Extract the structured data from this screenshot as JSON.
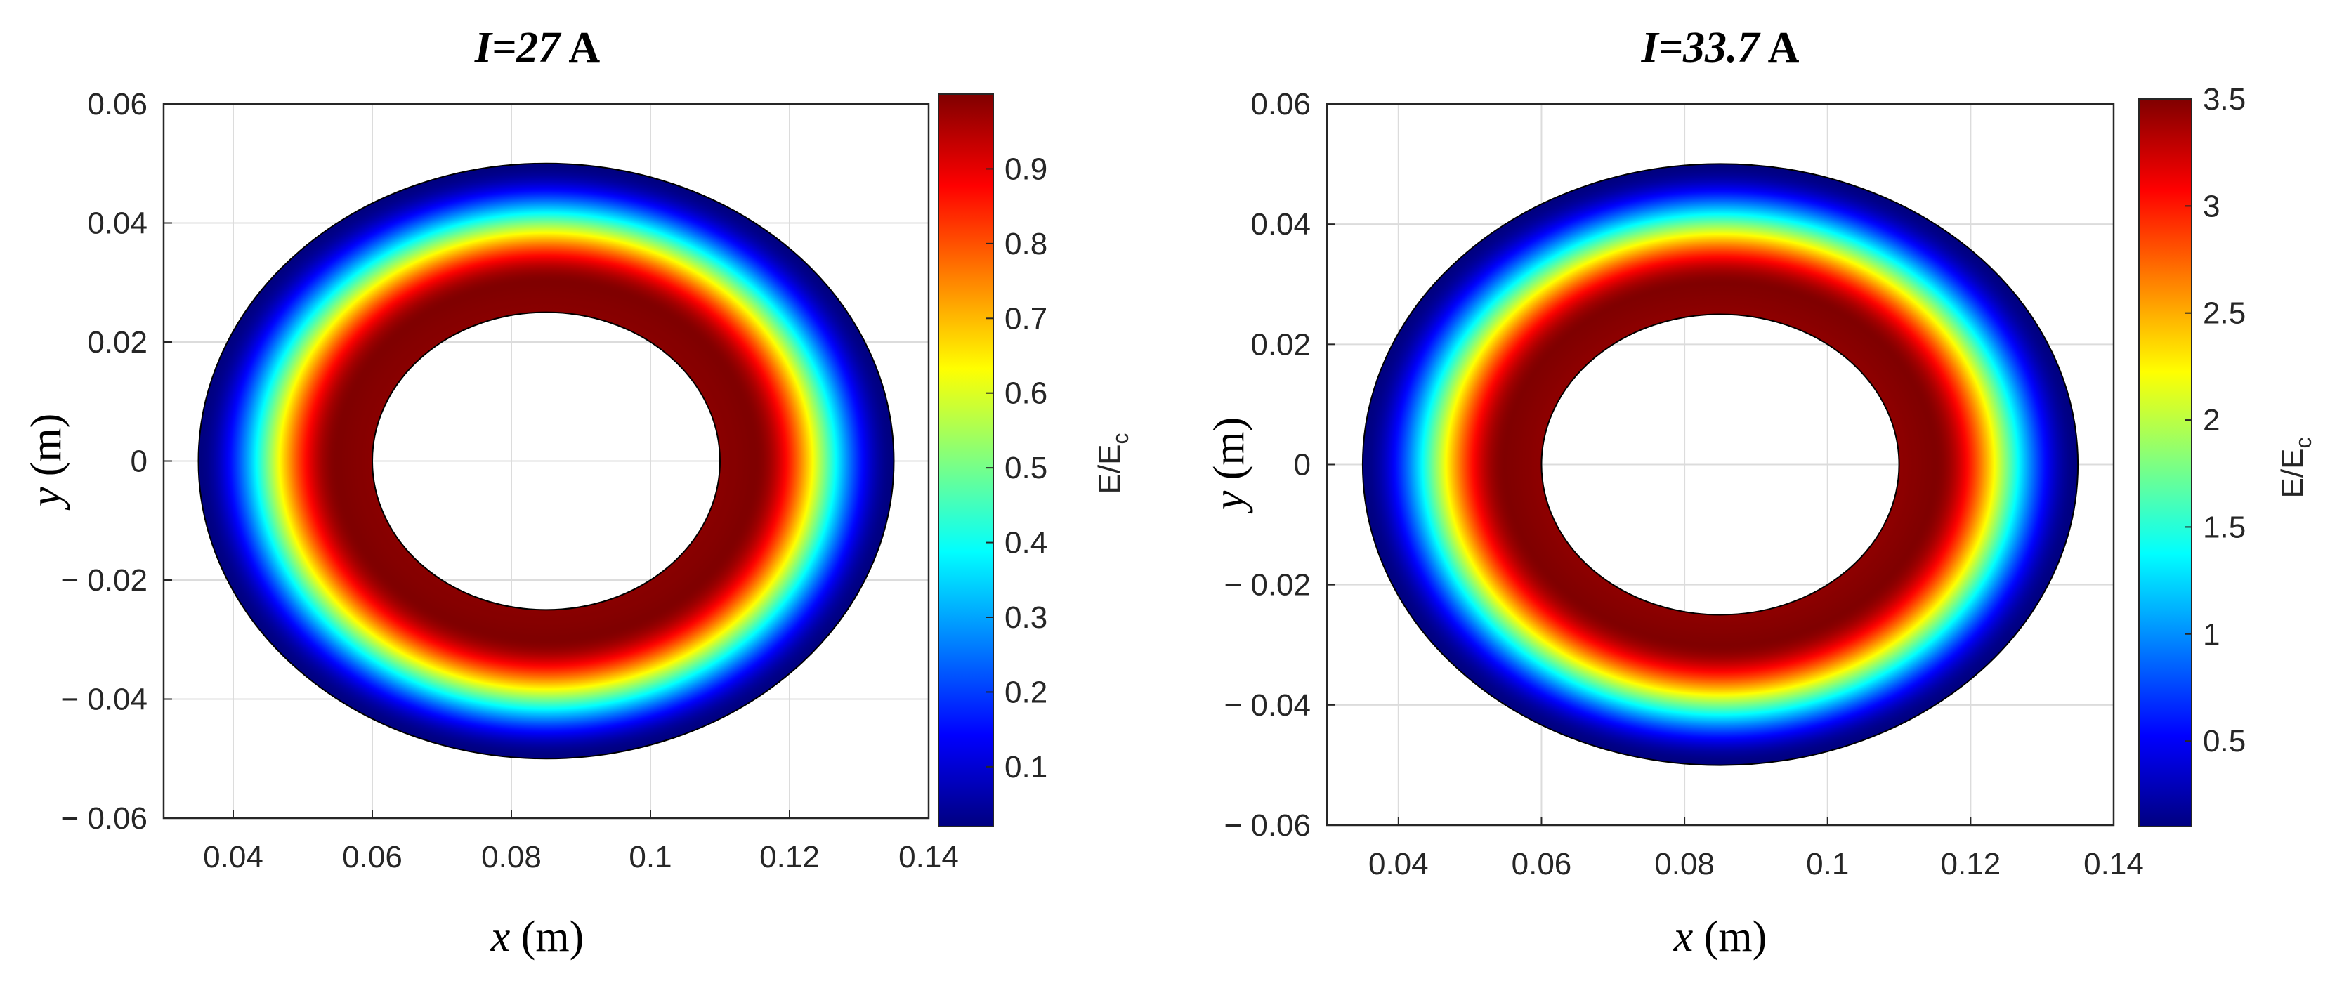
{
  "chart_data": [
    {
      "type": "heatmap",
      "title_var": "I",
      "title_value": "=27",
      "title_unit": " A",
      "xlabel_var": "x",
      "xlabel_unit": " (m)",
      "ylabel_var": "y",
      "ylabel_unit": " (m)",
      "xlim": [
        0.03,
        0.14
      ],
      "ylim": [
        -0.06,
        0.06
      ],
      "xticks": [
        0.04,
        0.06,
        0.08,
        0.1,
        0.12,
        0.14
      ],
      "xtick_labels": [
        "0.04",
        "0.06",
        "0.08",
        "0.1",
        "0.12",
        "0.14"
      ],
      "yticks": [
        0.06,
        0.04,
        0.02,
        0,
        -0.02,
        -0.04,
        -0.06
      ],
      "ytick_labels": [
        "0.06",
        "0.04",
        "0.02",
        "0",
        "− 0.02",
        "− 0.04",
        "− 0.06"
      ],
      "grid": true,
      "center": [
        0.085,
        0
      ],
      "inner_radius": 0.025,
      "outer_radius": 0.05,
      "peak_radius": 0.03,
      "field_profile": {
        "at_inner": 0.99,
        "at_peak": 1.0,
        "at_outer": 0.02
      },
      "colorbar": {
        "label": "E/E",
        "label_sub": "c",
        "range": [
          0.02,
          1.0
        ],
        "ticks": [
          0.1,
          0.2,
          0.3,
          0.4,
          0.5,
          0.6,
          0.7,
          0.8,
          0.9
        ],
        "tick_labels": [
          "0.1",
          "0.2",
          "0.3",
          "0.4",
          "0.5",
          "0.6",
          "0.7",
          "0.8",
          "0.9"
        ],
        "colormap": "jet"
      }
    },
    {
      "type": "heatmap",
      "title_var": "I",
      "title_value": "=33.7",
      "title_unit": " A",
      "xlabel_var": "x",
      "xlabel_unit": " (m)",
      "ylabel_var": "y",
      "ylabel_unit": " (m)",
      "xlim": [
        0.03,
        0.14
      ],
      "ylim": [
        -0.06,
        0.06
      ],
      "xticks": [
        0.04,
        0.06,
        0.08,
        0.1,
        0.12,
        0.14
      ],
      "xtick_labels": [
        "0.04",
        "0.06",
        "0.08",
        "0.1",
        "0.12",
        "0.14"
      ],
      "yticks": [
        0.06,
        0.04,
        0.02,
        0,
        -0.02,
        -0.04,
        -0.06
      ],
      "ytick_labels": [
        "0.06",
        "0.04",
        "0.02",
        "0",
        "− 0.02",
        "− 0.04",
        "− 0.06"
      ],
      "grid": true,
      "center": [
        0.085,
        0
      ],
      "inner_radius": 0.025,
      "outer_radius": 0.05,
      "peak_radius": 0.03,
      "field_profile": {
        "at_inner": 3.45,
        "at_peak": 3.5,
        "at_outer": 0.1
      },
      "colorbar": {
        "label": "E/E",
        "label_sub": "c",
        "range": [
          0.1,
          3.5
        ],
        "ticks": [
          0.5,
          1,
          1.5,
          2,
          2.5,
          3,
          3.5
        ],
        "tick_labels": [
          "0.5",
          "1",
          "1.5",
          "2",
          "2.5",
          "3",
          "3.5"
        ],
        "colormap": "jet"
      }
    }
  ]
}
